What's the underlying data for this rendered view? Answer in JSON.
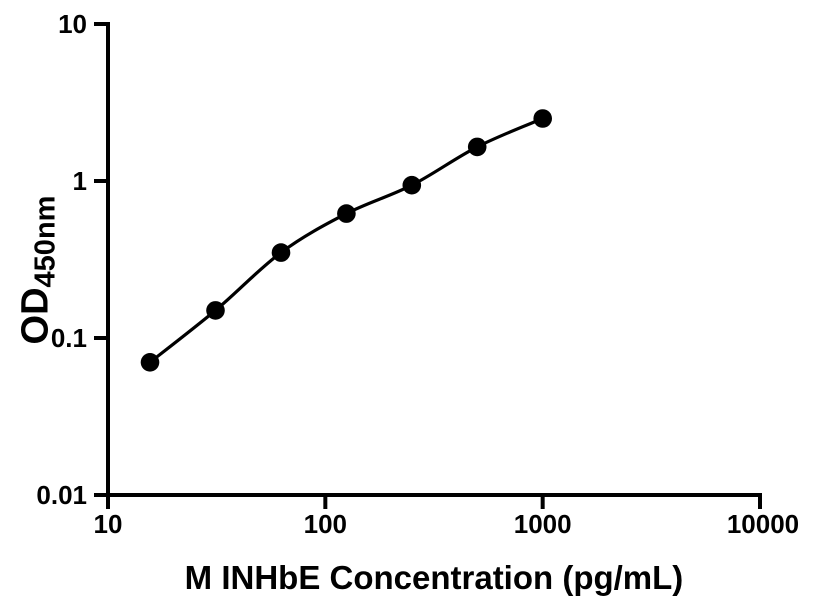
{
  "chart_data": {
    "type": "scatter",
    "x": [
      15.6,
      31.25,
      62.5,
      125,
      250,
      500,
      1000
    ],
    "y": [
      0.07,
      0.15,
      0.35,
      0.62,
      0.94,
      1.65,
      2.5
    ],
    "title": "",
    "xlabel": "M INHbE Concentration (pg/mL)",
    "ylabel_main": "OD",
    "ylabel_sub": "450nm",
    "x_scale": "log",
    "y_scale": "log",
    "xlim": [
      10,
      10000
    ],
    "ylim": [
      0.01,
      10
    ],
    "x_ticks": [
      10,
      100,
      1000,
      10000
    ],
    "x_tick_labels": [
      "10",
      "100",
      "1000",
      "10000"
    ],
    "y_ticks": [
      0.01,
      0.1,
      1,
      10
    ],
    "y_tick_labels": [
      "0.01",
      "0.1",
      "1",
      "10"
    ],
    "grid": false,
    "legend": "none",
    "line_style": "smooth-fit-curve",
    "marker": "filled-circle",
    "marker_color": "#000000",
    "line_color": "#000000",
    "axis_color": "#000000",
    "background_color": "#ffffff"
  }
}
